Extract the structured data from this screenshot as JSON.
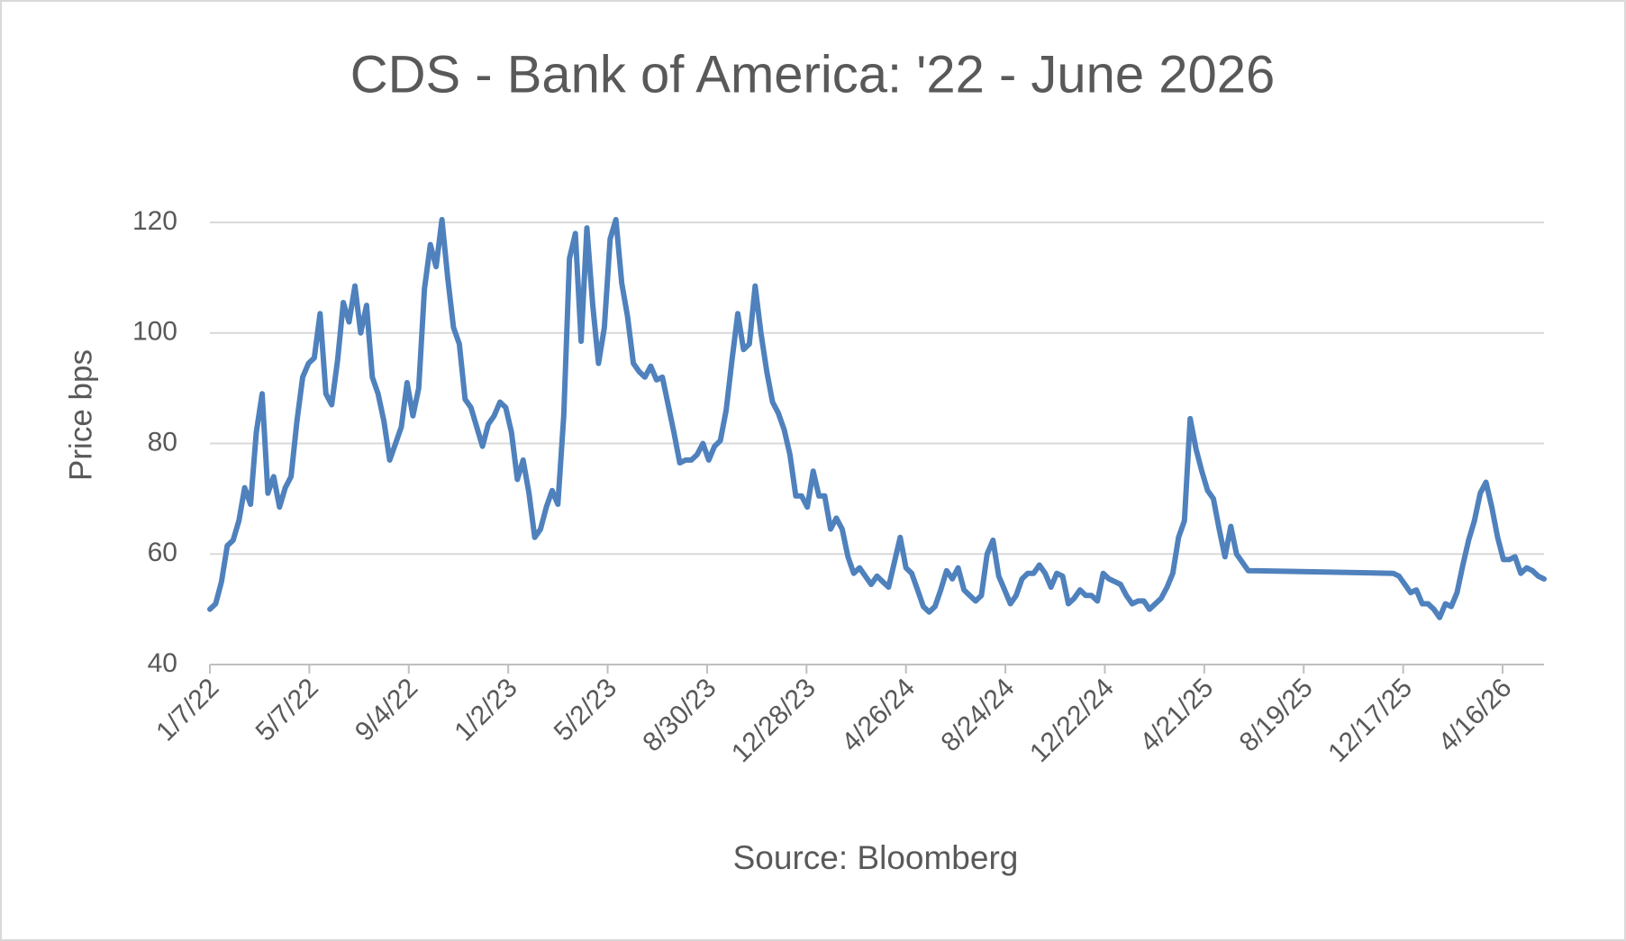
{
  "chart_data": {
    "type": "line",
    "title": "CDS - Bank of America: '22 - June 2026",
    "y_label": "Price bps",
    "x_label": "Source: Bloomberg",
    "x": [
      "1/7/22",
      "1/14/22",
      "1/21/22",
      "1/28/22",
      "2/4/22",
      "2/11/22",
      "2/18/22",
      "2/25/22",
      "3/4/22",
      "3/11/22",
      "3/18/22",
      "3/25/22",
      "4/1/22",
      "4/8/22",
      "4/15/22",
      "4/22/22",
      "4/29/22",
      "5/6/22",
      "5/13/22",
      "5/20/22",
      "5/27/22",
      "6/3/22",
      "6/10/22",
      "6/17/22",
      "6/24/22",
      "7/1/22",
      "7/8/22",
      "7/15/22",
      "7/22/22",
      "7/29/22",
      "8/5/22",
      "8/12/22",
      "8/19/22",
      "8/26/22",
      "9/2/22",
      "9/9/22",
      "9/16/22",
      "9/23/22",
      "9/30/22",
      "10/7/22",
      "10/14/22",
      "10/21/22",
      "10/28/22",
      "11/4/22",
      "11/11/22",
      "11/18/22",
      "11/25/22",
      "12/2/22",
      "12/9/22",
      "12/16/22",
      "12/23/22",
      "12/30/22",
      "1/6/23",
      "1/13/23",
      "1/20/23",
      "1/27/23",
      "2/3/23",
      "2/10/23",
      "2/17/23",
      "2/24/23",
      "3/3/23",
      "3/10/23",
      "3/17/23",
      "3/24/23",
      "3/31/23",
      "4/7/23",
      "4/14/23",
      "4/21/23",
      "4/28/23",
      "5/5/23",
      "5/12/23",
      "5/19/23",
      "5/26/23",
      "6/2/23",
      "6/9/23",
      "6/16/23",
      "6/23/23",
      "6/30/23",
      "7/7/23",
      "7/14/23",
      "7/21/23",
      "7/28/23",
      "8/4/23",
      "8/11/23",
      "8/18/23",
      "8/25/23",
      "9/1/23",
      "9/8/23",
      "9/15/23",
      "9/22/23",
      "9/29/23",
      "10/6/23",
      "10/13/23",
      "10/20/23",
      "10/27/23",
      "11/3/23",
      "11/10/23",
      "11/17/23",
      "11/24/23",
      "12/1/23",
      "12/8/23",
      "12/15/23",
      "12/22/23",
      "12/29/23",
      "1/5/24",
      "1/12/24",
      "1/19/24",
      "1/26/24",
      "2/2/24",
      "2/9/24",
      "2/16/24",
      "2/23/24",
      "3/1/24",
      "3/8/24",
      "3/15/24",
      "3/22/24",
      "3/29/24",
      "4/5/24",
      "4/12/24",
      "4/19/24",
      "4/26/24",
      "5/3/24",
      "5/10/24",
      "5/17/24",
      "5/24/24",
      "5/31/24",
      "6/7/24",
      "6/14/24",
      "6/21/24",
      "6/28/24",
      "7/5/24",
      "7/12/24",
      "7/19/24",
      "7/26/24",
      "8/2/24",
      "8/9/24",
      "8/16/24",
      "8/23/24",
      "8/30/24",
      "9/6/24",
      "9/13/24",
      "9/20/24",
      "9/27/24",
      "10/4/24",
      "10/11/24",
      "10/18/24",
      "10/25/24",
      "11/1/24",
      "11/8/24",
      "11/15/24",
      "11/22/24",
      "11/29/24",
      "12/6/24",
      "12/13/24",
      "12/20/24",
      "12/27/24",
      "1/3/25",
      "1/10/25",
      "1/17/25",
      "1/24/25",
      "1/31/25",
      "2/7/25",
      "2/14/25",
      "2/21/25",
      "2/28/25",
      "3/7/25",
      "3/14/25",
      "3/21/25",
      "3/28/25",
      "4/4/25",
      "4/11/25",
      "4/18/25",
      "4/25/25",
      "5/2/25",
      "5/9/25",
      "5/16/25",
      "5/23/25",
      "5/30/25",
      "6/6/25",
      "6/13/25",
      "12/5/25",
      "12/12/25",
      "12/19/25",
      "12/26/25",
      "1/2/26",
      "1/9/26",
      "1/16/26",
      "1/23/26",
      "1/30/26",
      "2/6/26",
      "2/13/26",
      "2/20/26",
      "2/27/26",
      "3/6/26",
      "3/13/26",
      "3/20/26",
      "3/27/26",
      "4/3/26",
      "4/10/26",
      "4/17/26",
      "4/24/26",
      "5/1/26",
      "5/8/26",
      "5/15/26",
      "5/22/26",
      "5/29/26",
      "6/5/26"
    ],
    "series": [
      {
        "color": "#4f81bd",
        "values": [
          50,
          51,
          55,
          61.5,
          62.5,
          66,
          72,
          69,
          82,
          89,
          71,
          74,
          68.5,
          72,
          74,
          84,
          92,
          94.5,
          95.5,
          103.5,
          89,
          87,
          95,
          105.5,
          102,
          108.5,
          100,
          105,
          92,
          89,
          84,
          77,
          80,
          83,
          91,
          85,
          90,
          108,
          116,
          112,
          120.5,
          110,
          101,
          98,
          88,
          86.5,
          83,
          79.5,
          83.5,
          85,
          87.5,
          86.5,
          82,
          73.5,
          77,
          71,
          63,
          64.5,
          68.5,
          71.5,
          69,
          85,
          113.5,
          118,
          98.5,
          119,
          105,
          94.5,
          101,
          117,
          120.5,
          109,
          103,
          94.5,
          93,
          92,
          94,
          91.5,
          92,
          87,
          82,
          76.5,
          77,
          77,
          78,
          80,
          77,
          79.5,
          80.5,
          86,
          95,
          103.5,
          97,
          98,
          108.5,
          100,
          93,
          87.5,
          85.5,
          82.5,
          78,
          70.5,
          70.5,
          68.5,
          75,
          70.5,
          70.5,
          64.5,
          66.5,
          64.5,
          59.5,
          56.5,
          57.5,
          56,
          54.5,
          56,
          55,
          54,
          58.5,
          63,
          57.5,
          56.5,
          53.5,
          50.5,
          49.5,
          50.5,
          53.5,
          57,
          55.5,
          57.5,
          53.5,
          52.5,
          51.5,
          52.5,
          60,
          62.5,
          56,
          53.5,
          51,
          52.5,
          55.5,
          56.5,
          56.5,
          58,
          56.5,
          54,
          56.5,
          56,
          51,
          52,
          53.5,
          52.5,
          52.5,
          51.5,
          56.5,
          55.5,
          55,
          54.5,
          52.5,
          51,
          51.5,
          51.5,
          50,
          51,
          52,
          54,
          56.5,
          63,
          66,
          84.5,
          79,
          75,
          71.5,
          70,
          64.5,
          59.5,
          65,
          60,
          58.5,
          57,
          56.5,
          56,
          54.5,
          53,
          53.5,
          51,
          51,
          50,
          48.5,
          51,
          50.5,
          53,
          58,
          62.5,
          66,
          71,
          73,
          68.5,
          63,
          59,
          59,
          59.5,
          56.5,
          57.5,
          57,
          56,
          55.5
        ]
      }
    ],
    "xlim": [
      "1/7/22",
      "6/5/26"
    ],
    "xticks": [
      "1/7/22",
      "5/7/22",
      "9/4/22",
      "1/2/23",
      "5/2/23",
      "8/30/23",
      "12/28/23",
      "4/26/24",
      "8/24/24",
      "12/22/24",
      "4/21/25",
      "8/19/25",
      "12/17/25",
      "4/16/26"
    ],
    "ylim": [
      40,
      120
    ],
    "yticks": [
      40,
      60,
      80,
      100,
      120
    ],
    "grid": true
  }
}
